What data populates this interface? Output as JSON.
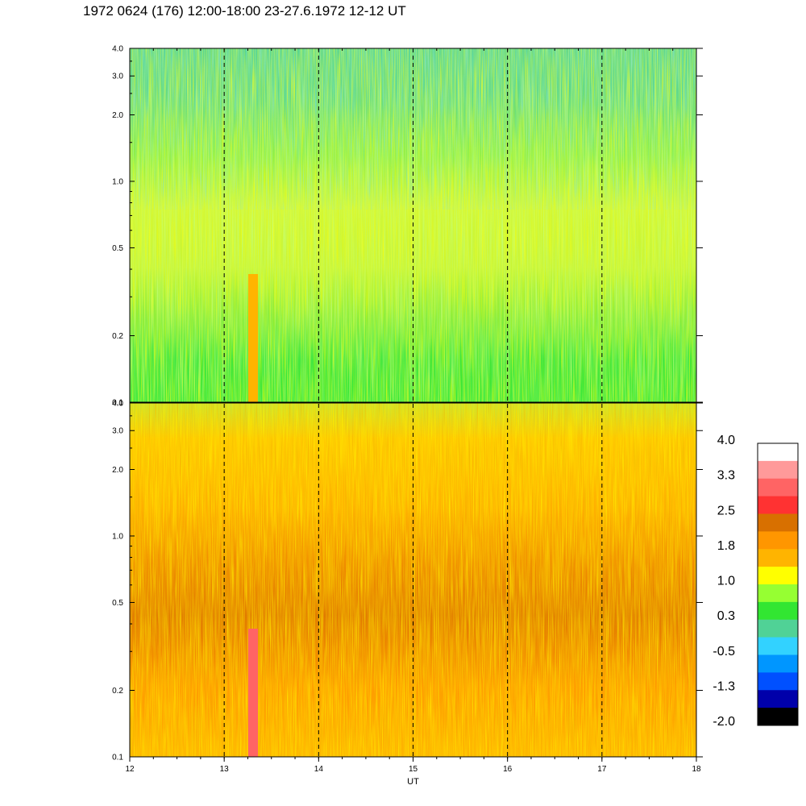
{
  "title": "1972 0624 (176) 12:00-18:00 23-27.6.1972  12-12 UT",
  "chart_data": {
    "type": "heatmap",
    "x_label": "UT",
    "x_ticks": [
      "12",
      "13",
      "14",
      "15",
      "16",
      "17",
      "18"
    ],
    "x_range": [
      12,
      18
    ],
    "y_scale": "log",
    "y_range": [
      0.1,
      4.0
    ],
    "y_ticks": [
      "0.1",
      "0.2",
      "0.5",
      "1.0",
      "2.0",
      "3.0",
      "4.0"
    ],
    "colorbar_labels": [
      "4.0",
      "3.3",
      "2.5",
      "1.8",
      "1.0",
      "0.3",
      "-0.5",
      "-1.3",
      "-2.0"
    ],
    "colorbar_colors": [
      "#ffffff",
      "#ff9a9a",
      "#ff6464",
      "#ff3232",
      "#d87000",
      "#ff9600",
      "#ffb400",
      "#ffff00",
      "#96ff32",
      "#32e632",
      "#50d296",
      "#32d2ff",
      "#0096ff",
      "#0050ff",
      "#0000aa",
      "#000000"
    ],
    "panels": [
      {
        "id": "upper",
        "dominant_colors": [
          "#32e632",
          "#96ff32",
          "#ffff00",
          "#50d296"
        ]
      },
      {
        "id": "lower",
        "dominant_colors": [
          "#ff9600",
          "#ffb400",
          "#d87000",
          "#ffff00"
        ]
      }
    ]
  }
}
